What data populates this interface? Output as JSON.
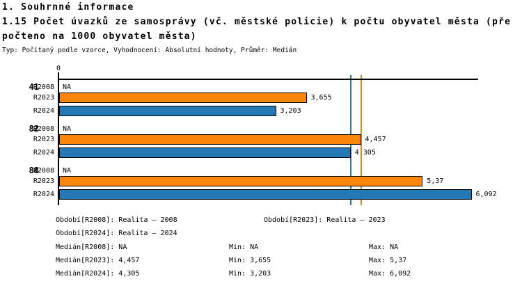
{
  "header": {
    "section_title": "1. Souhrnné informace",
    "indicator_title_line1": "1.15 Počet úvazků ze samosprávy (vč. městské policie) k počtu obyvatel města (пře",
    "indicator_title_line2": "počteno na 1000 obyvatel města)",
    "subtitle": "Typ: Počítaný podle vzorce, Vyhodnocení: Absolutní hodnoty, Průměr: Medián"
  },
  "chart_data": {
    "type": "bar",
    "orientation": "horizontal",
    "title": "1.15 Počet úvazků ze samosprávy (vč. městské policie) k počtu obyvatel města (přepočteno na 1000 obyvatel města)",
    "axis": {
      "origin_tick_label": "0",
      "xlim": [
        0,
        6.2
      ],
      "grid": false
    },
    "categories": [
      "41",
      "82",
      "88"
    ],
    "series_order": [
      "R2008",
      "R2023",
      "R2024"
    ],
    "groups": [
      {
        "category": "41",
        "bars": [
          {
            "series": "R2008",
            "value": null,
            "label": "NA"
          },
          {
            "series": "R2023",
            "value": 3.655,
            "label": "3,655"
          },
          {
            "series": "R2024",
            "value": 3.203,
            "label": "3,203"
          }
        ]
      },
      {
        "category": "82",
        "bars": [
          {
            "series": "R2008",
            "value": null,
            "label": "NA"
          },
          {
            "series": "R2023",
            "value": 4.457,
            "label": "4,457"
          },
          {
            "series": "R2024",
            "value": 4.305,
            "label": "4,305"
          }
        ]
      },
      {
        "category": "88",
        "bars": [
          {
            "series": "R2008",
            "value": null,
            "label": "NA"
          },
          {
            "series": "R2023",
            "value": 5.37,
            "label": "5,37"
          },
          {
            "series": "R2024",
            "value": 6.092,
            "label": "6,092"
          }
        ]
      }
    ],
    "series_colors": {
      "R2023": "#fb8609",
      "R2024": "#2478b4"
    },
    "median_lines": [
      {
        "series": "R2024",
        "value": 4.305,
        "color": "#2878a8"
      },
      {
        "series": "R2023",
        "value": 4.457,
        "color": "#f08210"
      }
    ]
  },
  "legend": {
    "period_row1_col1": "Období[R2008]: Realita – 2008",
    "period_row1_col2": "Období[R2023]: Realita – 2023",
    "period_row2_col1": "Období[R2024]: Realita – 2024",
    "stats": [
      {
        "median": "Medián[R2008]: NA",
        "min": "Min: NA",
        "max": "Max: NA"
      },
      {
        "median": "Medián[R2023]: 4,457",
        "min": "Min: 3,655",
        "max": "Max: 5,37"
      },
      {
        "median": "Medián[R2024]: 4,305",
        "min": "Min: 3,203",
        "max": "Max: 6,092"
      }
    ]
  }
}
